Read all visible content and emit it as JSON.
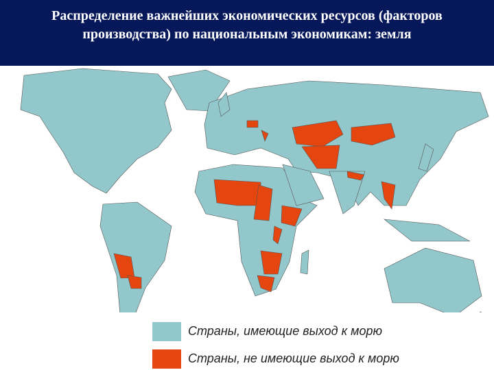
{
  "header": {
    "title": "Распределение важнейших экономических ресурсов (факторов производства) по национальным экономикам: земля"
  },
  "legend": [
    {
      "label": "Страны, имеющие выход к морю",
      "color": "#92c7cb"
    },
    {
      "label": "Страны, не имеющие выход к морю",
      "color": "#e5450f"
    }
  ]
}
